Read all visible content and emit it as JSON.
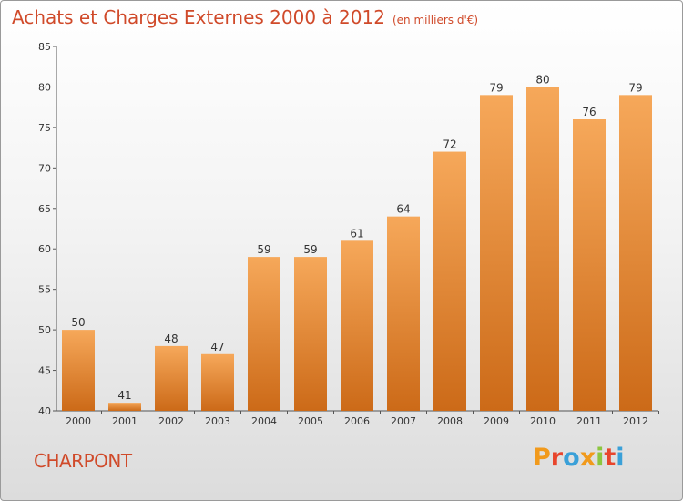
{
  "header": {
    "title": "Achats et Charges Externes 2000 à 2012",
    "subtitle": "(en milliers d'€)"
  },
  "footer": {
    "commune": "CHARPONT",
    "logo_text": "Proxiti"
  },
  "colors": {
    "title": "#d04a2a",
    "bar_top": "#f6a85a",
    "bar_bottom": "#cc6a18",
    "logo": [
      "#f19a1c",
      "#e8452c",
      "#3aa0d8",
      "#f19a1c",
      "#8cc63f",
      "#e8452c",
      "#3aa0d8"
    ]
  },
  "chart_data": {
    "type": "bar",
    "categories": [
      "2000",
      "2001",
      "2002",
      "2003",
      "2004",
      "2005",
      "2006",
      "2007",
      "2008",
      "2009",
      "2010",
      "2011",
      "2012"
    ],
    "values": [
      50,
      41,
      48,
      47,
      59,
      59,
      61,
      64,
      72,
      79,
      80,
      76,
      79
    ],
    "ylim": [
      40,
      85
    ],
    "yticks": [
      40,
      45,
      50,
      55,
      60,
      65,
      70,
      75,
      80,
      85
    ],
    "grid": false,
    "title": "Achats et Charges Externes 2000 à 2012",
    "subtitle": "(en milliers d'€)"
  }
}
